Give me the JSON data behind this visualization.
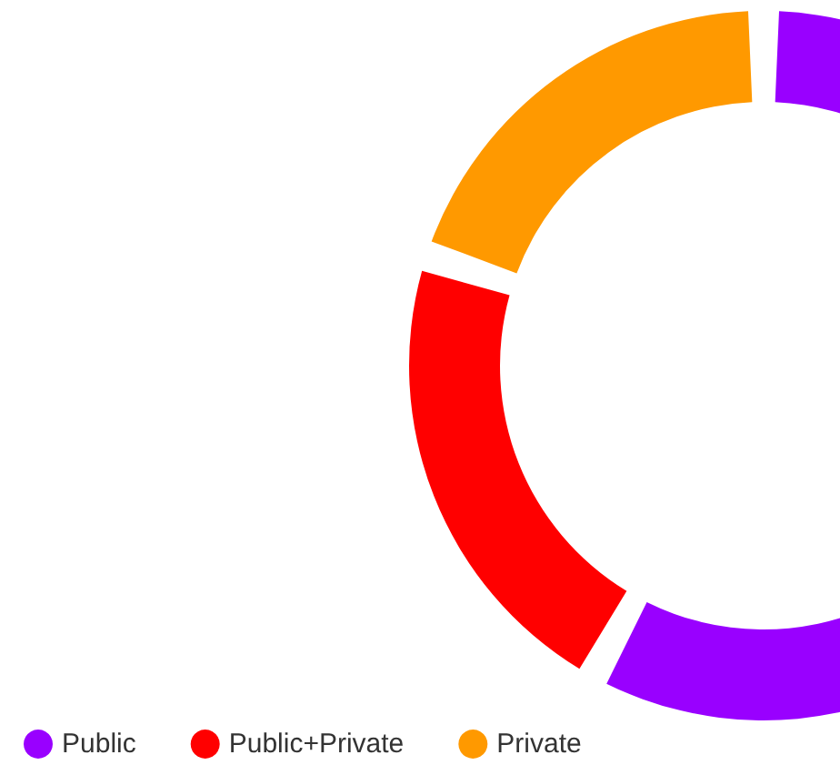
{
  "chart_data": {
    "type": "donut",
    "categories": [
      "Public",
      "Public+Private",
      "Private"
    ],
    "values": [
      58,
      22,
      20
    ],
    "colors": [
      "#9900ff",
      "#ff0000",
      "#ff9900"
    ],
    "legend": "bottom left"
  }
}
